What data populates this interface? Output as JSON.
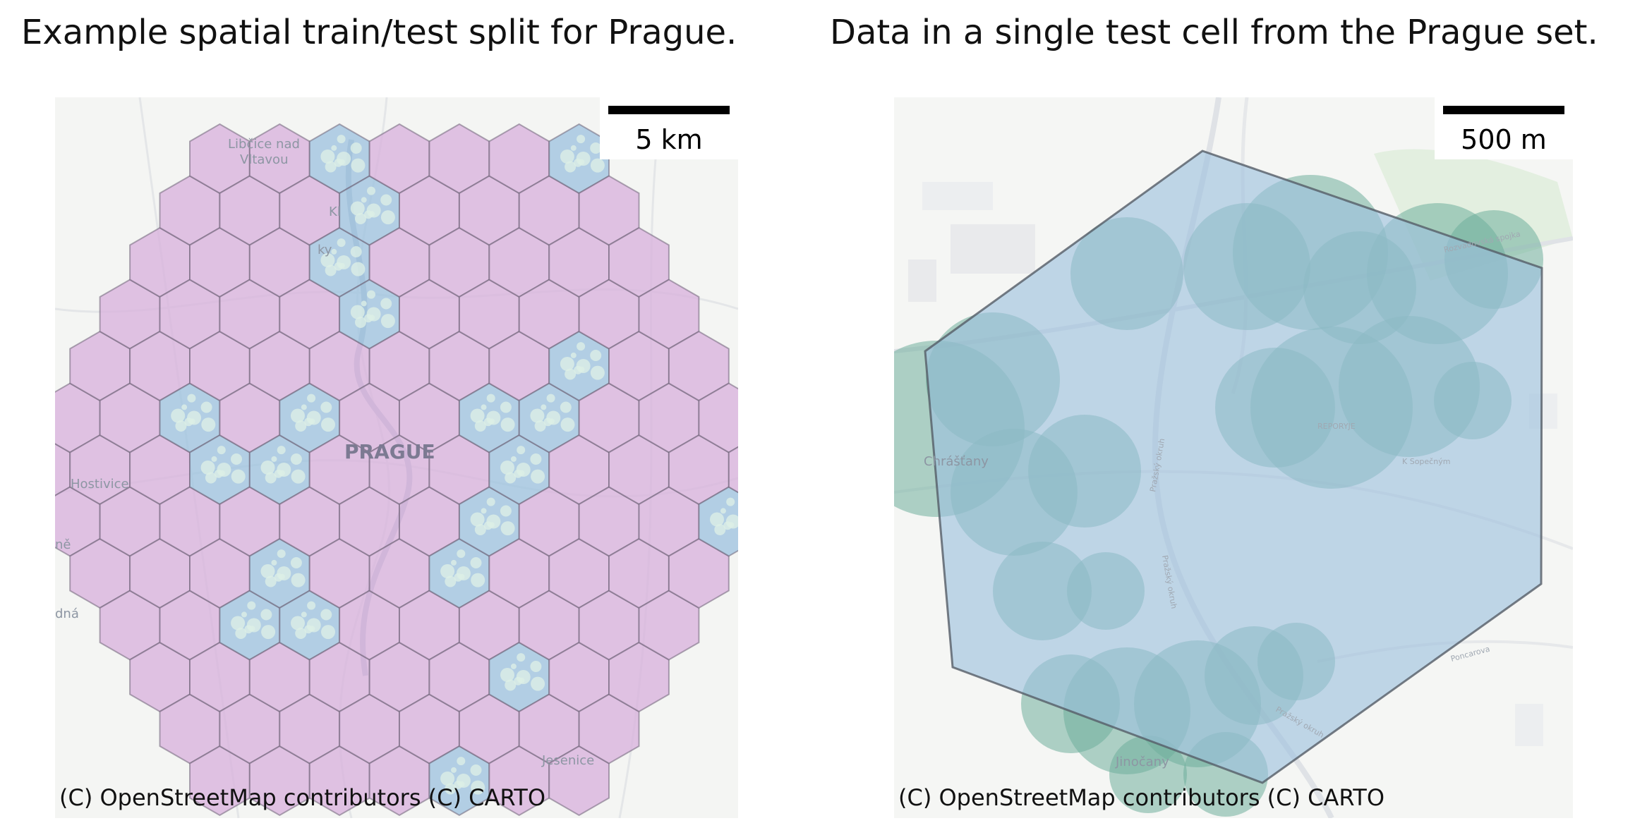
{
  "panels": [
    {
      "title": "Example spatial train/test split for Prague.",
      "scale_label": "5 km",
      "attribution": "(C) OpenStreetMap contributors (C) CARTO",
      "city_label": "PRAGUE",
      "place_labels": [
        "Libčice nad",
        "Vltavou",
        "Kl",
        "ky",
        "Hostivice",
        "ně",
        "dná",
        "Jesenice"
      ],
      "colors": {
        "train": "#d8b2dc",
        "test": "#9fc3df",
        "data_points": "#dcefe6",
        "edge": "#6f6478"
      }
    },
    {
      "title": "Data in a single test cell from the Prague set.",
      "scale_label": "500 m",
      "attribution": "(C) OpenStreetMap contributors (C) CARTO",
      "place_labels": [
        "Chrášťany",
        "Jinočany",
        "Pražský okruh",
        "Pražský okruh",
        "Pražský okruh",
        "Rozvadovská spojka",
        "Poncarova",
        "K Sopečným",
        "REPORYJE"
      ],
      "colors": {
        "cell": "#9dc0dd",
        "regions": "#6fae9c",
        "edge": "#555c66"
      }
    }
  ]
}
